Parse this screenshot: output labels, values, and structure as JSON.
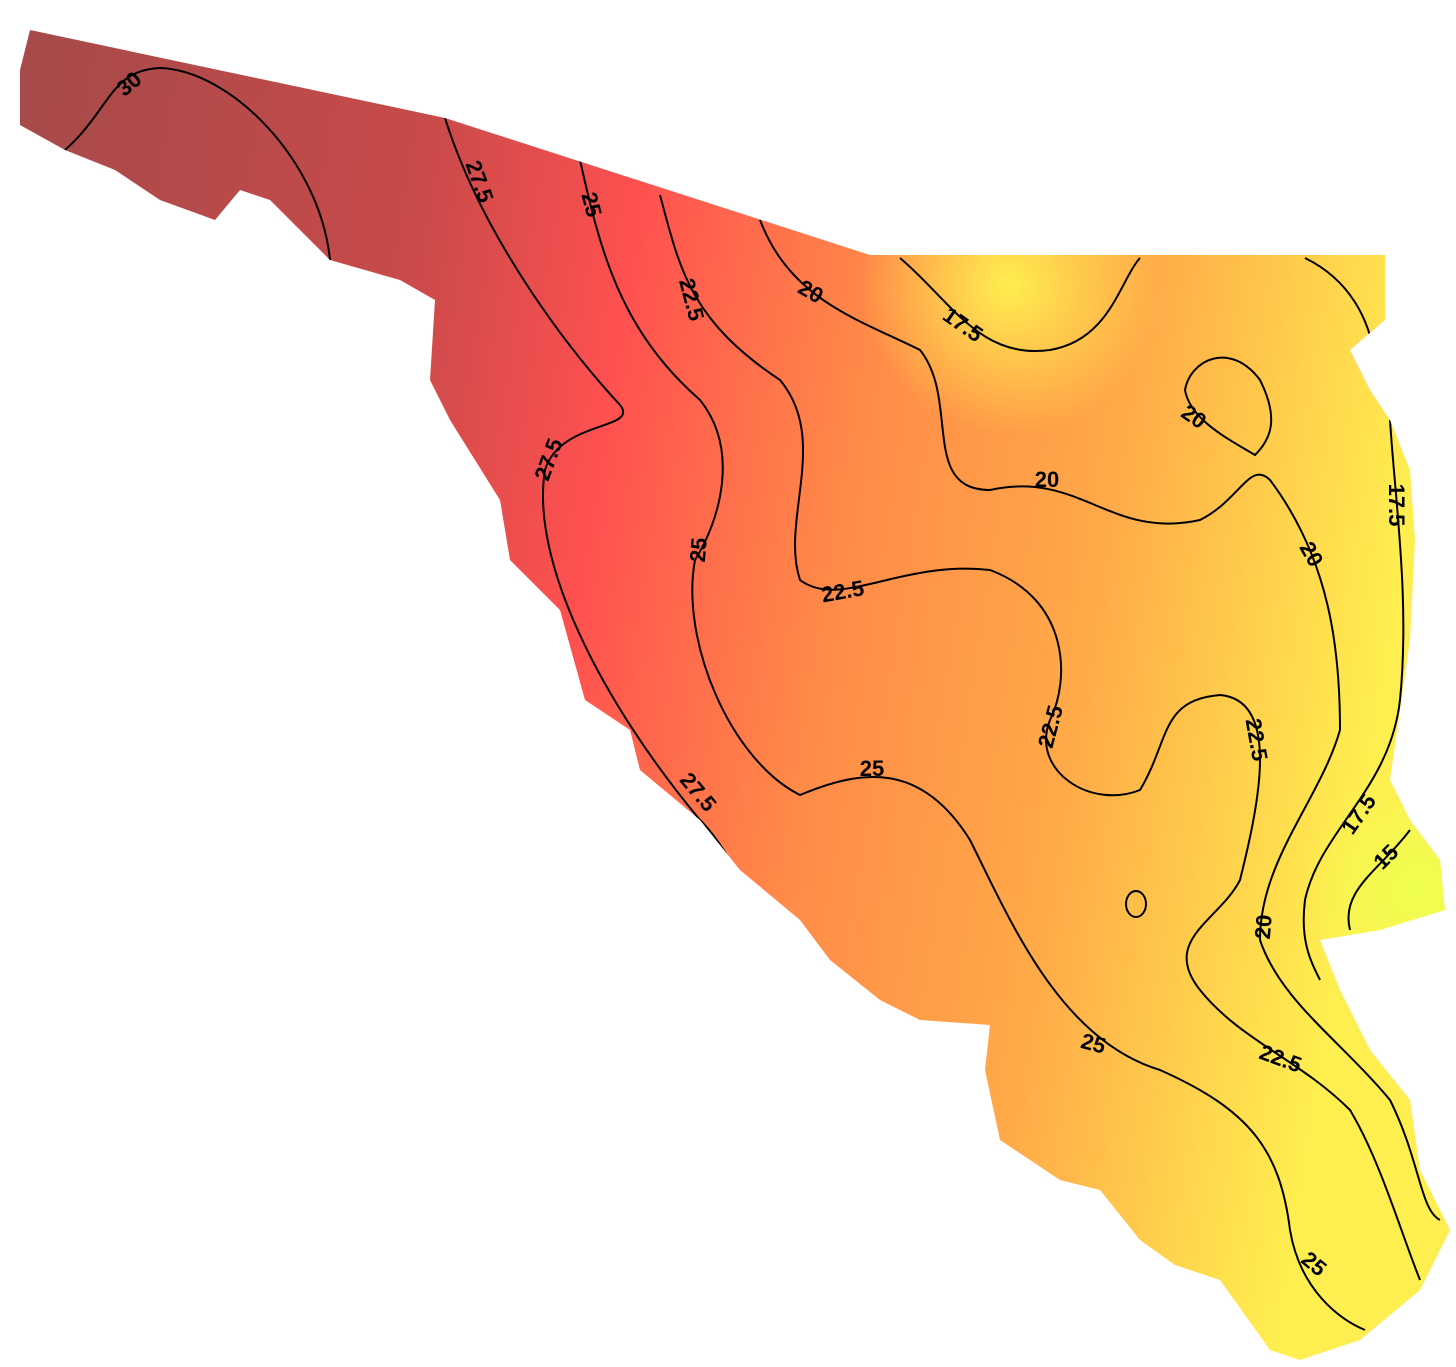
{
  "map": {
    "contour_labels": [
      "30",
      "27.5",
      "25",
      "22.5",
      "20",
      "17.5",
      "20",
      "20",
      "17.5",
      "27.5",
      "25",
      "22.5",
      "20",
      "22.5",
      "22.5",
      "25",
      "27.5",
      "17.5",
      "15",
      "20",
      "25",
      "22.5",
      "25"
    ]
  }
}
